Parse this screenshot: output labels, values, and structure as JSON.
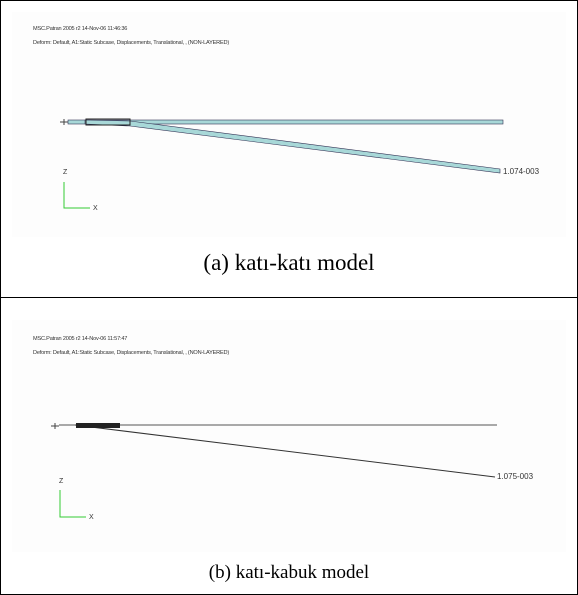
{
  "panels": [
    {
      "header": [
        "MSC.Patran 2005 r2 14-Nov-06 11:46:36",
        "Deform: Default, A1:Static Subcase, Displacements, Translational, , (NON-LAYERED)"
      ],
      "max_label": "1.074-003",
      "axis_z": "Z",
      "axis_x": "X",
      "caption": "(a) katı-katı model"
    },
    {
      "header": [
        "MSC.Patran 2005 r2 14-Nov-06 11:57:47",
        "Deform: Default, A1:Static Subcase, Displacements, Translational, , (NON-LAYERED)"
      ],
      "max_label": "1.075-003",
      "axis_z": "Z",
      "axis_x": "X",
      "caption": "(b) katı-kabuk model"
    }
  ]
}
